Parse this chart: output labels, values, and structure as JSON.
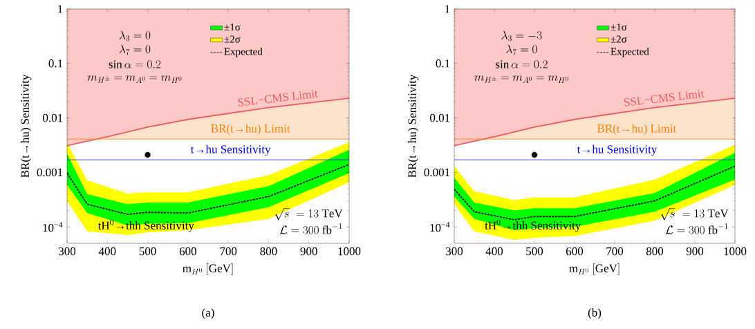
{
  "chart_data": [
    {
      "type": "line",
      "xlabel": "\\mathrm{m}_{H^0}\\ [\\mathrm{GeV}]",
      "ylabel": "BR(t→hu) Sensitivity",
      "log": "y",
      "legend": "top",
      "xlim": [
        300,
        1000
      ],
      "ylim": [
        5e-05,
        1
      ],
      "xticks": [
        300,
        400,
        500,
        600,
        700,
        800,
        900,
        1000
      ],
      "yticks": [
        {
          "value": 0.0001,
          "label": "10$^{−4}$"
        },
        0.001,
        0.01,
        0.1,
        1
      ],
      "x": [
        300,
        350,
        450,
        500,
        600,
        800,
        1000
      ],
      "series": [
        {
          "name": "±1σ",
          "type": "area",
          "color": "#00ff00",
          "values": [
            null,
            null,
            null,
            null,
            null,
            null,
            null
          ],
          "lower": [
            0.00059,
            0.00018,
            0.000107,
            0.000114,
            0.000117,
            0.00023,
            0.00097
          ],
          "upper": [
            0.0022,
            0.0004,
            0.00026,
            0.00028,
            0.00028,
            0.00056,
            0.0026
          ]
        },
        {
          "name": "±2σ",
          "type": "area",
          "color": "#ffff00",
          "values": [
            null,
            null,
            null,
            null,
            null,
            null,
            null
          ],
          "lower": [
            0.0003,
            8.3e-05,
            7.1e-05,
            7.9e-05,
            8.7e-05,
            0.00014,
            0.00066
          ],
          "upper": [
            0.0035,
            0.00072,
            0.00041,
            0.00043,
            0.00043,
            0.00089,
            0.0036
          ]
        },
        {
          "type": "area",
          "color": "#fcc8c8",
          "x": [
            300,
            400,
            500,
            600,
            800,
            1000
          ],
          "values": [
            null,
            null,
            null,
            null,
            null,
            null
          ],
          "lower": [
            0.0031,
            0.0045,
            0.0068,
            0.0094,
            0.0155,
            0.023
          ],
          "upper": [
            1,
            1,
            1,
            1,
            1,
            1
          ]
        },
        {
          "name": "SSL−CMS Limit",
          "type": "line",
          "color": "#f05a5a",
          "x": [
            300,
            400,
            500,
            600,
            800,
            1000
          ],
          "values": [
            0.0031,
            0.0045,
            0.0068,
            0.0094,
            0.0155,
            0.023
          ]
        },
        {
          "name": "Expected",
          "type": "line",
          "color": "#000000",
          "line_style": "dashed",
          "values": [
            0.00097,
            0.00026,
            0.00017,
            0.000185,
            0.00018,
            0.00036,
            0.0014
          ]
        },
        {
          "type": "scatter",
          "color": "#000000",
          "marker": "circle",
          "x": [
            500
          ],
          "values": [
            0.0021
          ]
        }
      ],
      "ref_lines": [
        {
          "axis": "y",
          "value": 0.0041,
          "label": "BR(t→hu) Limit",
          "color": "#ff8000"
        },
        {
          "axis": "y",
          "value": 0.0017,
          "label": "t→hu Sensitivity",
          "color": "#0000ff"
        }
      ],
      "bands": [
        {
          "axis": "y",
          "from": 0.0041,
          "to": 1,
          "color": "#fde3cc"
        }
      ],
      "annotations": [
        "\\lambda_3=0",
        "\\lambda_7=0",
        "\\sin\\alpha=0.2",
        "m_{H^{\\pm}}=m_{A^0}=m_{H^0}",
        "\\sqrt{s}\\;=13\\ \\mathrm{TeV}",
        "\\mathcal{L}=300\\ \\mathrm{fb}^{-1}",
        "tH$^{0}$→thh Sensitivity",
        "(a)"
      ]
    },
    {
      "type": "line",
      "xlabel": "\\mathrm{m}_{H^0}\\ [\\mathrm{GeV}]",
      "ylabel": "BR(t→hu) Sensitivity",
      "log": "y",
      "legend": "top",
      "xlim": [
        300,
        1000
      ],
      "ylim": [
        5e-05,
        1
      ],
      "xticks": [
        300,
        400,
        500,
        600,
        700,
        800,
        900,
        1000
      ],
      "yticks": [
        {
          "value": 0.0001,
          "label": "10$^{−4}$"
        },
        0.001,
        0.01,
        0.1,
        1
      ],
      "x": [
        300,
        350,
        450,
        500,
        600,
        800,
        1000
      ],
      "series": [
        {
          "name": "±1σ",
          "type": "area",
          "color": "#00ff00",
          "values": [
            null,
            null,
            null,
            null,
            null,
            null,
            null
          ],
          "lower": [
            0.00036,
            0.00014,
            8.7e-05,
            9.6e-05,
            0.0001,
            0.00019,
            0.00074
          ],
          "upper": [
            0.0008,
            0.00028,
            0.0002,
            0.00022,
            0.00022,
            0.00042,
            0.0023
          ]
        },
        {
          "name": "±2σ",
          "type": "area",
          "color": "#ffff00",
          "values": [
            null,
            null,
            null,
            null,
            null,
            null,
            null
          ],
          "lower": [
            0.00026,
            8.3e-05,
            5.8e-05,
            6.3e-05,
            6.8e-05,
            0.00013,
            0.00059
          ],
          "upper": [
            0.0013,
            0.00045,
            0.00031,
            0.00035,
            0.00035,
            0.00074,
            0.0032
          ]
        },
        {
          "type": "area",
          "color": "#fcc8c8",
          "x": [
            300,
            400,
            500,
            600,
            800,
            1000
          ],
          "values": [
            null,
            null,
            null,
            null,
            null,
            null
          ],
          "lower": [
            0.0031,
            0.0045,
            0.0068,
            0.0094,
            0.0155,
            0.023
          ],
          "upper": [
            1,
            1,
            1,
            1,
            1,
            1
          ]
        },
        {
          "name": "SSL−CMS Limit",
          "type": "line",
          "color": "#f05a5a",
          "x": [
            300,
            400,
            500,
            600,
            800,
            1000
          ],
          "values": [
            0.0031,
            0.0045,
            0.0068,
            0.0094,
            0.0155,
            0.023
          ]
        },
        {
          "name": "Expected",
          "type": "line",
          "color": "#000000",
          "line_style": "dashed",
          "values": [
            0.00049,
            0.00019,
            0.000135,
            0.000155,
            0.000155,
            0.0003,
            0.0013
          ]
        },
        {
          "type": "scatter",
          "color": "#000000",
          "marker": "circle",
          "x": [
            500
          ],
          "values": [
            0.0021
          ]
        }
      ],
      "ref_lines": [
        {
          "axis": "y",
          "value": 0.0041,
          "label": "BR(t→hu) Limit",
          "color": "#ff8000"
        },
        {
          "axis": "y",
          "value": 0.0017,
          "label": "t→hu Sensitivity",
          "color": "#0000ff"
        }
      ],
      "bands": [
        {
          "axis": "y",
          "from": 0.0041,
          "to": 1,
          "color": "#fde3cc"
        }
      ],
      "annotations": [
        "\\lambda_3=-3",
        "\\lambda_7=0",
        "\\sin\\alpha=0.2",
        "m_{H^{\\pm}}=m_{A^0}=m_{H^0}",
        "\\sqrt{s}\\;=13\\ \\mathrm{TeV}",
        "\\mathcal{L}=300\\ \\mathrm{fb}^{-1}",
        "tH$^{0}$→thh Sensitivity",
        "(b)"
      ]
    }
  ]
}
